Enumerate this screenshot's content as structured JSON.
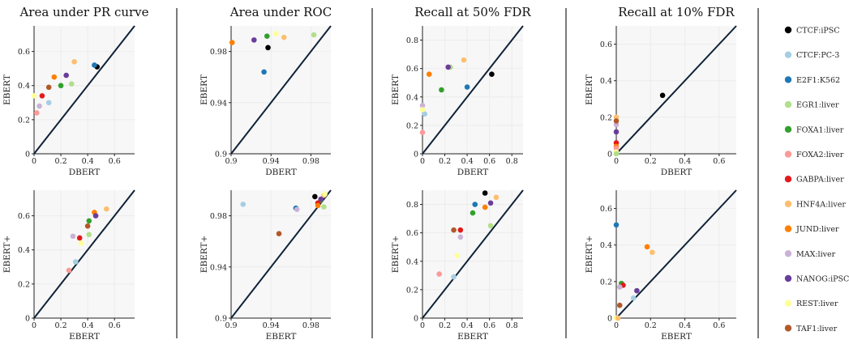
{
  "legend": [
    {
      "name": "CTCF:iPSC",
      "color": "#000000"
    },
    {
      "name": "CTCF:PC-3",
      "color": "#a6cee3"
    },
    {
      "name": "E2F1:K562",
      "color": "#1f78b4"
    },
    {
      "name": "EGR1:liver",
      "color": "#b2df8a"
    },
    {
      "name": "FOXA1:liver",
      "color": "#33a02c"
    },
    {
      "name": "FOXA2:liver",
      "color": "#fb9a99"
    },
    {
      "name": "GABPA:liver",
      "color": "#e31a1c"
    },
    {
      "name": "HNF4A:liver",
      "color": "#fdbf6f"
    },
    {
      "name": "JUND:liver",
      "color": "#ff7f00"
    },
    {
      "name": "MAX:liver",
      "color": "#cab2d6"
    },
    {
      "name": "NANOG:iPSC",
      "color": "#6a3d9a"
    },
    {
      "name": "REST:liver",
      "color": "#ffff99"
    },
    {
      "name": "TAF1:liver",
      "color": "#b15928"
    }
  ],
  "chart_data": [
    {
      "type": "scatter",
      "title": "Area under PR curve",
      "xlabel": "DBERT",
      "ylabel": "EBERT",
      "xlim": [
        0,
        0.75
      ],
      "ylim": [
        0,
        0.75
      ],
      "xticks": [
        "0",
        "0.2",
        "0.4",
        "0.6"
      ],
      "yticks": [
        "0",
        "0.2",
        "0.4",
        "0.6"
      ],
      "xtickvals": [
        0,
        0.2,
        0.4,
        0.6
      ],
      "ytickvals": [
        0,
        0.2,
        0.4,
        0.6
      ],
      "points": [
        {
          "series": "CTCF:iPSC",
          "x": 0.47,
          "y": 0.51
        },
        {
          "series": "CTCF:PC-3",
          "x": 0.11,
          "y": 0.3
        },
        {
          "series": "E2F1:K562",
          "x": 0.45,
          "y": 0.52
        },
        {
          "series": "EGR1:liver",
          "x": 0.28,
          "y": 0.41
        },
        {
          "series": "FOXA1:liver",
          "x": 0.2,
          "y": 0.4
        },
        {
          "series": "FOXA2:liver",
          "x": 0.02,
          "y": 0.24
        },
        {
          "series": "GABPA:liver",
          "x": 0.06,
          "y": 0.34
        },
        {
          "series": "HNF4A:liver",
          "x": 0.3,
          "y": 0.54
        },
        {
          "series": "JUND:liver",
          "x": 0.15,
          "y": 0.45
        },
        {
          "series": "MAX:liver",
          "x": 0.04,
          "y": 0.28
        },
        {
          "series": "NANOG:iPSC",
          "x": 0.24,
          "y": 0.46
        },
        {
          "series": "REST:liver",
          "x": 0.0,
          "y": 0.34
        },
        {
          "series": "TAF1:liver",
          "x": 0.11,
          "y": 0.39
        }
      ]
    },
    {
      "type": "scatter",
      "title": "Area under ROC",
      "xlabel": "DBERT",
      "ylabel": "EBERT",
      "xlim": [
        0.9,
        1.0
      ],
      "ylim": [
        0.9,
        1.0
      ],
      "xticks": [
        "0.9",
        "0.94",
        "0.98"
      ],
      "yticks": [
        "0.9",
        "0.94",
        "0.98"
      ],
      "xtickvals": [
        0.9,
        0.94,
        0.98
      ],
      "ytickvals": [
        0.9,
        0.94,
        0.98
      ],
      "points": [
        {
          "series": "CTCF:iPSC",
          "x": 0.937,
          "y": 0.983
        },
        {
          "series": "E2F1:K562",
          "x": 0.933,
          "y": 0.964
        },
        {
          "series": "EGR1:liver",
          "x": 0.983,
          "y": 0.993
        },
        {
          "series": "FOXA1:liver",
          "x": 0.936,
          "y": 0.992
        },
        {
          "series": "HNF4A:liver",
          "x": 0.953,
          "y": 0.991
        },
        {
          "series": "JUND:liver",
          "x": 0.901,
          "y": 0.987
        },
        {
          "series": "NANOG:iPSC",
          "x": 0.923,
          "y": 0.989
        },
        {
          "series": "REST:liver",
          "x": 0.945,
          "y": 0.994
        }
      ]
    },
    {
      "type": "scatter",
      "title": "Recall at 50% FDR",
      "xlabel": "DBERT",
      "ylabel": "EBERT",
      "xlim": [
        0,
        0.9
      ],
      "ylim": [
        0,
        0.9
      ],
      "xticks": [
        "0",
        "0.2",
        "0.4",
        "0.6",
        "0.8"
      ],
      "yticks": [
        "0",
        "0.2",
        "0.4",
        "0.6",
        "0.8"
      ],
      "xtickvals": [
        0,
        0.2,
        0.4,
        0.6,
        0.8
      ],
      "ytickvals": [
        0,
        0.2,
        0.4,
        0.6,
        0.8
      ],
      "points": [
        {
          "series": "CTCF:iPSC",
          "x": 0.62,
          "y": 0.56
        },
        {
          "series": "CTCF:PC-3",
          "x": 0.02,
          "y": 0.28
        },
        {
          "series": "E2F1:K562",
          "x": 0.4,
          "y": 0.47
        },
        {
          "series": "EGR1:liver",
          "x": 0.25,
          "y": 0.61
        },
        {
          "series": "FOXA1:liver",
          "x": 0.17,
          "y": 0.45
        },
        {
          "series": "FOXA2:liver",
          "x": 0.0,
          "y": 0.15
        },
        {
          "series": "HNF4A:liver",
          "x": 0.37,
          "y": 0.66
        },
        {
          "series": "JUND:liver",
          "x": 0.06,
          "y": 0.56
        },
        {
          "series": "MAX:liver",
          "x": 0.0,
          "y": 0.34
        },
        {
          "series": "NANOG:iPSC",
          "x": 0.23,
          "y": 0.61
        },
        {
          "series": "REST:liver",
          "x": 0.0,
          "y": 0.31
        }
      ]
    },
    {
      "type": "scatter",
      "title": "Recall at 10% FDR",
      "xlabel": "DBERT",
      "ylabel": "EBERT",
      "xlim": [
        0,
        0.7
      ],
      "ylim": [
        0,
        0.7
      ],
      "xticks": [
        "0",
        "0.2",
        "0.4",
        "0.6"
      ],
      "yticks": [
        "0",
        "0.2",
        "0.4",
        "0.6"
      ],
      "xtickvals": [
        0,
        0.2,
        0.4,
        0.6
      ],
      "ytickvals": [
        0,
        0.2,
        0.4,
        0.6
      ],
      "points": [
        {
          "series": "CTCF:iPSC",
          "x": 0.27,
          "y": 0.32
        },
        {
          "series": "HNF4A:liver",
          "x": 0.0,
          "y": 0.2
        },
        {
          "series": "MAX:liver",
          "x": 0.0,
          "y": 0.16
        },
        {
          "series": "NANOG:iPSC",
          "x": 0.0,
          "y": 0.12
        },
        {
          "series": "TAF1:liver",
          "x": 0.0,
          "y": 0.18
        },
        {
          "series": "GABPA:liver",
          "x": 0.0,
          "y": 0.06
        },
        {
          "series": "JUND:liver",
          "x": 0.0,
          "y": 0.04
        },
        {
          "series": "FOXA2:liver",
          "x": 0.0,
          "y": 0.03
        },
        {
          "series": "REST:liver",
          "x": 0.0,
          "y": 0.01
        },
        {
          "series": "EGR1:liver",
          "x": 0.0,
          "y": 0.0
        }
      ]
    },
    {
      "type": "scatter",
      "title": "",
      "xlabel": "EBERT",
      "ylabel": "EBERT+",
      "xlim": [
        0,
        0.75
      ],
      "ylim": [
        0,
        0.75
      ],
      "xticks": [
        "0",
        "0.2",
        "0.4",
        "0.6"
      ],
      "yticks": [
        "0",
        "0.2",
        "0.4",
        "0.6"
      ],
      "xtickvals": [
        0,
        0.2,
        0.4,
        0.6
      ],
      "ytickvals": [
        0,
        0.2,
        0.4,
        0.6
      ],
      "points": [
        {
          "series": "CTCF:PC-3",
          "x": 0.31,
          "y": 0.33
        },
        {
          "series": "EGR1:liver",
          "x": 0.41,
          "y": 0.49
        },
        {
          "series": "FOXA1:liver",
          "x": 0.41,
          "y": 0.57
        },
        {
          "series": "FOXA2:liver",
          "x": 0.26,
          "y": 0.28
        },
        {
          "series": "GABPA:liver",
          "x": 0.34,
          "y": 0.47
        },
        {
          "series": "HNF4A:liver",
          "x": 0.54,
          "y": 0.64
        },
        {
          "series": "JUND:liver",
          "x": 0.45,
          "y": 0.62
        },
        {
          "series": "MAX:liver",
          "x": 0.29,
          "y": 0.48
        },
        {
          "series": "NANOG:iPSC",
          "x": 0.46,
          "y": 0.6
        },
        {
          "series": "REST:liver",
          "x": 0.35,
          "y": 0.44
        },
        {
          "series": "TAF1:liver",
          "x": 0.4,
          "y": 0.54
        }
      ]
    },
    {
      "type": "scatter",
      "title": "",
      "xlabel": "EBERT",
      "ylabel": "EBERT+",
      "xlim": [
        0.9,
        1.0
      ],
      "ylim": [
        0.9,
        1.0
      ],
      "xticks": [
        "0.9",
        "0.94",
        "0.98"
      ],
      "yticks": [
        "0.9",
        "0.94",
        "0.98"
      ],
      "xtickvals": [
        0.9,
        0.94,
        0.98
      ],
      "ytickvals": [
        0.9,
        0.94,
        0.98
      ],
      "points": [
        {
          "series": "CTCF:iPSC",
          "x": 0.984,
          "y": 0.995
        },
        {
          "series": "CTCF:PC-3",
          "x": 0.912,
          "y": 0.989
        },
        {
          "series": "E2F1:K562",
          "x": 0.965,
          "y": 0.986
        },
        {
          "series": "EGR1:liver",
          "x": 0.993,
          "y": 0.987
        },
        {
          "series": "FOXA1:liver",
          "x": 0.99,
          "y": 0.992
        },
        {
          "series": "GABPA:liver",
          "x": 0.987,
          "y": 0.99
        },
        {
          "series": "HNF4A:liver",
          "x": 0.993,
          "y": 0.996
        },
        {
          "series": "JUND:liver",
          "x": 0.987,
          "y": 0.988
        },
        {
          "series": "MAX:liver",
          "x": 0.966,
          "y": 0.985
        },
        {
          "series": "NANOG:iPSC",
          "x": 0.99,
          "y": 0.993
        },
        {
          "series": "REST:liver",
          "x": 0.994,
          "y": 0.997
        },
        {
          "series": "TAF1:liver",
          "x": 0.948,
          "y": 0.966
        }
      ]
    },
    {
      "type": "scatter",
      "title": "",
      "xlabel": "EBERT",
      "ylabel": "EBERT+",
      "xlim": [
        0,
        0.9
      ],
      "ylim": [
        0,
        0.9
      ],
      "xticks": [
        "0",
        "0.2",
        "0.4",
        "0.6",
        "0.8"
      ],
      "yticks": [
        "0",
        "0.2",
        "0.4",
        "0.6",
        "0.8"
      ],
      "xtickvals": [
        0,
        0.2,
        0.4,
        0.6,
        0.8
      ],
      "ytickvals": [
        0,
        0.2,
        0.4,
        0.6,
        0.8
      ],
      "points": [
        {
          "series": "CTCF:iPSC",
          "x": 0.56,
          "y": 0.88
        },
        {
          "series": "CTCF:PC-3",
          "x": 0.28,
          "y": 0.29
        },
        {
          "series": "E2F1:K562",
          "x": 0.47,
          "y": 0.8
        },
        {
          "series": "EGR1:liver",
          "x": 0.61,
          "y": 0.65
        },
        {
          "series": "FOXA1:liver",
          "x": 0.45,
          "y": 0.74
        },
        {
          "series": "FOXA2:liver",
          "x": 0.15,
          "y": 0.31
        },
        {
          "series": "GABPA:liver",
          "x": 0.34,
          "y": 0.62
        },
        {
          "series": "HNF4A:liver",
          "x": 0.66,
          "y": 0.85
        },
        {
          "series": "JUND:liver",
          "x": 0.56,
          "y": 0.78
        },
        {
          "series": "MAX:liver",
          "x": 0.34,
          "y": 0.57
        },
        {
          "series": "NANOG:iPSC",
          "x": 0.61,
          "y": 0.81
        },
        {
          "series": "REST:liver",
          "x": 0.31,
          "y": 0.44
        },
        {
          "series": "TAF1:liver",
          "x": 0.28,
          "y": 0.62
        }
      ]
    },
    {
      "type": "scatter",
      "title": "",
      "xlabel": "EBERT",
      "ylabel": "EBERT+",
      "xlim": [
        0,
        0.7
      ],
      "ylim": [
        0,
        0.7
      ],
      "xticks": [
        "0",
        "0.2",
        "0.4",
        "0.6"
      ],
      "yticks": [
        "0",
        "0.2",
        "0.4",
        "0.6"
      ],
      "xtickvals": [
        0,
        0.2,
        0.4,
        0.6
      ],
      "ytickvals": [
        0,
        0.2,
        0.4,
        0.6
      ],
      "points": [
        {
          "series": "E2F1:K562",
          "x": 0.0,
          "y": 0.51
        },
        {
          "series": "JUND:liver",
          "x": 0.18,
          "y": 0.39
        },
        {
          "series": "HNF4A:liver",
          "x": 0.21,
          "y": 0.36
        },
        {
          "series": "FOXA1:liver",
          "x": 0.03,
          "y": 0.19
        },
        {
          "series": "GABPA:liver",
          "x": 0.04,
          "y": 0.18
        },
        {
          "series": "MAX:liver",
          "x": 0.02,
          "y": 0.17
        },
        {
          "series": "NANOG:iPSC",
          "x": 0.12,
          "y": 0.15
        },
        {
          "series": "CTCF:PC-3",
          "x": 0.1,
          "y": 0.11
        },
        {
          "series": "TAF1:liver",
          "x": 0.02,
          "y": 0.07
        },
        {
          "series": "REST:liver",
          "x": 0.0,
          "y": 0.0
        },
        {
          "series": "HNF4A:liver",
          "x": 0.01,
          "y": 0.0
        }
      ]
    }
  ]
}
